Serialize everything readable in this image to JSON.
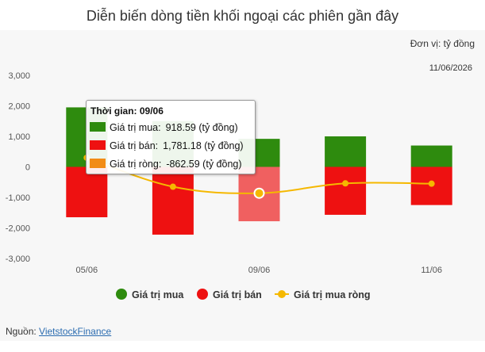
{
  "title": "Diễn biến dòng tiền khối ngoại các phiên gần đây",
  "unit": "Đơn vị: tỷ đồng",
  "date": "11/06/2026",
  "tooltip": {
    "title_label": "Thời gian:",
    "title_value": "09/06",
    "rows": [
      {
        "label": "Giá trị mua:",
        "value": "918.59 (tỷ đồng)",
        "color": "#2e8b0e"
      },
      {
        "label": "Giá trị bán:",
        "value": "1,781.18 (tỷ đồng)",
        "color": "#ee1111"
      },
      {
        "label": "Giá trị ròng:",
        "value": "-862.59 (tỷ đồng)",
        "color": "#f28c16"
      }
    ]
  },
  "legend": [
    {
      "label": "Giá trị mua",
      "color": "#2e8b0e"
    },
    {
      "label": "Giá trị bán",
      "color": "#ee1111"
    },
    {
      "label": "Giá trị mua ròng",
      "color": "#f5b800"
    }
  ],
  "source": {
    "label": "Nguồn:",
    "link": "VietstockFinance"
  },
  "colors": {
    "buy": "#2e8b0e",
    "sell": "#ee1111",
    "sell_highlight": "#f06060",
    "net": "#f5b800",
    "grid": "#dddddd"
  },
  "chart_data": {
    "type": "bar",
    "categories": [
      "05/06",
      "",
      "09/06",
      "",
      "11/06"
    ],
    "x_tick_labels": [
      "05/06",
      "09/06",
      "11/06"
    ],
    "series": [
      {
        "name": "Giá trị mua",
        "type": "bar",
        "values": [
          1950,
          1500,
          918.59,
          1000,
          700
        ]
      },
      {
        "name": "Giá trị bán",
        "type": "bar",
        "values": [
          -1650,
          -2220,
          -1781.18,
          -1570,
          -1250
        ]
      },
      {
        "name": "Giá trị mua ròng",
        "type": "line",
        "values": [
          300,
          -650,
          -862.59,
          -540,
          -550
        ]
      }
    ],
    "y_ticks": [
      "3,000",
      "2,000",
      "1,000",
      "0",
      "-1,000",
      "-2,000",
      "-3,000"
    ],
    "ylim": [
      -3000,
      3000
    ],
    "grid": false,
    "legend_position": "bottom",
    "highlighted_index": 2
  }
}
